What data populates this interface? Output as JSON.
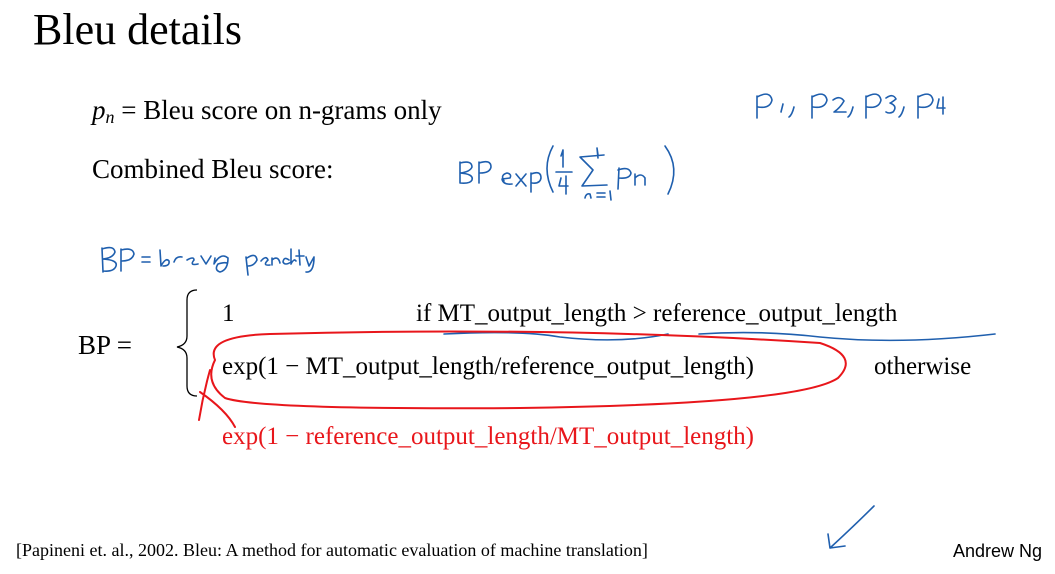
{
  "slide": {
    "title": "Bleu details",
    "pn_symbol": "p",
    "pn_subscript": "n",
    "pn_definition": " = Bleu score on n-grams only",
    "combined_label": "Combined Bleu score:",
    "bp_label": "BP =",
    "case1_value": "1",
    "case1_condition": "if MT_output_length > reference_output_length",
    "case2_value": "exp(1 − MT_output_length/reference_output_length)",
    "case2_condition": "otherwise",
    "correction": "exp(1 − reference_output_length/MT_output_length)",
    "citation": "[Papineni et. al., 2002. Bleu: A method for automatic evaluation of machine translation]",
    "author": "Andrew Ng"
  },
  "annotations": {
    "precisions": "p1, p2, p3, p4",
    "combined_formula": "BP exp(1/4 Σ_{n=1}^{4} p_n)",
    "bp_meaning": "BP = brevity penalty"
  },
  "colors": {
    "annotation_blue": "#1f5fae",
    "correction_red": "#e8161b"
  }
}
